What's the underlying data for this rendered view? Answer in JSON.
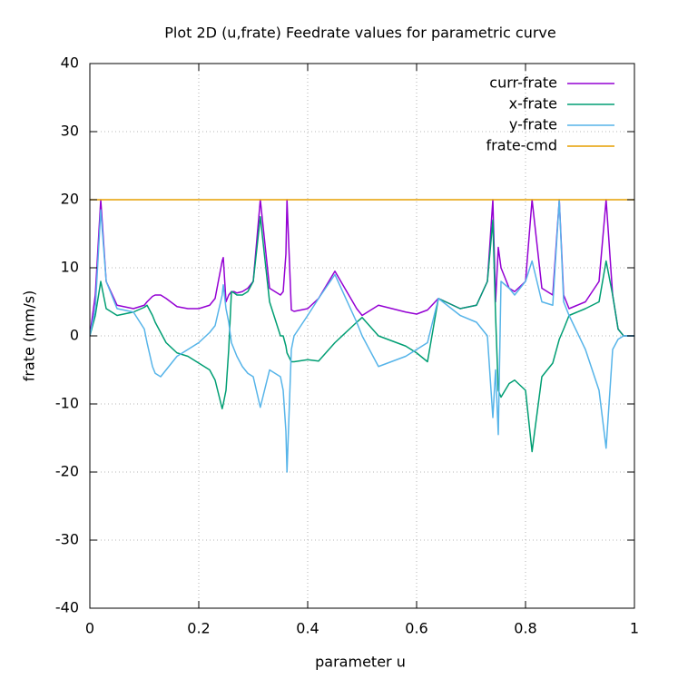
{
  "chart_data": {
    "type": "line",
    "title": "Plot 2D (u,frate) Feedrate values for parametric curve",
    "x_label": "parameter u",
    "y_label": "frate (mm/s)",
    "xlim": [
      0,
      1
    ],
    "ylim": [
      -40,
      40
    ],
    "xticks": [
      0,
      0.2,
      0.4,
      0.6,
      0.8,
      1
    ],
    "yticks": [
      -40,
      -30,
      -20,
      -10,
      0,
      10,
      20,
      30,
      40
    ],
    "grid": true,
    "legend": "top-right",
    "x": [
      0,
      0.01,
      0.02,
      0.03,
      0.05,
      0.08,
      0.1,
      0.105,
      0.115,
      0.12,
      0.13,
      0.14,
      0.16,
      0.18,
      0.2,
      0.22,
      0.23,
      0.243,
      0.245,
      0.25,
      0.255,
      0.26,
      0.265,
      0.27,
      0.28,
      0.29,
      0.3,
      0.313,
      0.33,
      0.35,
      0.355,
      0.36,
      0.362,
      0.37,
      0.375,
      0.4,
      0.42,
      0.45,
      0.49,
      0.5,
      0.53,
      0.58,
      0.6,
      0.62,
      0.64,
      0.68,
      0.71,
      0.73,
      0.74,
      0.745,
      0.75,
      0.755,
      0.77,
      0.78,
      0.8,
      0.812,
      0.83,
      0.85,
      0.862,
      0.87,
      0.88,
      0.91,
      0.935,
      0.948,
      0.96,
      0.97,
      0.98,
      1
    ],
    "series": [
      {
        "name": "curr-frate",
        "color": "#9400d3",
        "values": [
          0,
          6,
          20,
          8,
          4.5,
          4,
          4.5,
          5,
          5.8,
          6,
          6,
          5.5,
          4.3,
          4,
          4,
          4.5,
          5.5,
          11,
          11.5,
          5,
          6,
          6.5,
          6.5,
          6.3,
          6.5,
          7,
          8,
          20,
          7,
          6,
          6.5,
          12,
          20,
          3.8,
          3.6,
          4,
          5.5,
          9.5,
          4,
          3,
          4.5,
          3.5,
          3.2,
          3.8,
          5.5,
          4,
          4.5,
          8,
          20,
          5,
          13,
          10,
          7,
          6.5,
          8,
          20,
          7,
          6,
          20,
          6,
          4,
          5,
          8,
          20,
          6,
          1,
          0,
          0
        ]
      },
      {
        "name": "x-frate",
        "color": "#009e73",
        "values": [
          0,
          3,
          8,
          4,
          3,
          3.5,
          4.2,
          4.5,
          3,
          2,
          0.5,
          -1,
          -2.5,
          -3,
          -4,
          -5,
          -6.5,
          -10.7,
          -10,
          -8,
          -2,
          6.5,
          6.3,
          6,
          6,
          6.5,
          8,
          17.5,
          5,
          0,
          0,
          -1.5,
          -2.5,
          -3.8,
          -3.8,
          -3.5,
          -3.7,
          -1,
          2,
          2.7,
          0,
          -1.5,
          -2.5,
          -3.8,
          5.5,
          4,
          4.5,
          8,
          17,
          3,
          -8,
          -9,
          -7,
          -6.5,
          -8,
          -17,
          -6,
          -4,
          -0.5,
          1,
          3,
          4,
          5,
          11,
          6,
          1,
          0,
          0
        ]
      },
      {
        "name": "y-frate",
        "color": "#56b4e9",
        "values": [
          0,
          4,
          18.5,
          8,
          4,
          3.5,
          1,
          -1,
          -4.5,
          -5.5,
          -6,
          -5,
          -3,
          -2,
          -1,
          0.5,
          1.5,
          6,
          7.5,
          4,
          2,
          -1,
          -2,
          -3,
          -4.5,
          -5.5,
          -6,
          -10.5,
          -5,
          -6,
          -8,
          -14,
          -20,
          -2,
          0,
          3,
          5.5,
          9,
          2,
          0,
          -4.5,
          -3,
          -2,
          -1,
          5.5,
          3,
          2,
          0,
          -12,
          -5,
          -14.5,
          8,
          7,
          6,
          8,
          11,
          5,
          4.5,
          20,
          5,
          3,
          -2,
          -8,
          -16.5,
          -2,
          -0.5,
          0,
          0
        ]
      },
      {
        "name": "frate-cmd",
        "color": "#e69f00",
        "values": [
          20,
          20,
          20,
          20,
          20,
          20,
          20,
          20,
          20,
          20,
          20,
          20,
          20,
          20,
          20,
          20,
          20,
          20,
          20,
          20,
          20,
          20,
          20,
          20,
          20,
          20,
          20,
          20,
          20,
          20,
          20,
          20,
          20,
          20,
          20,
          20,
          20,
          20,
          20,
          20,
          20,
          20,
          20,
          20,
          20,
          20,
          20,
          20,
          20,
          20,
          20,
          20,
          20,
          20,
          20,
          20,
          20,
          20,
          20,
          20,
          20,
          20,
          20,
          20,
          20,
          20,
          20,
          20
        ]
      }
    ]
  }
}
